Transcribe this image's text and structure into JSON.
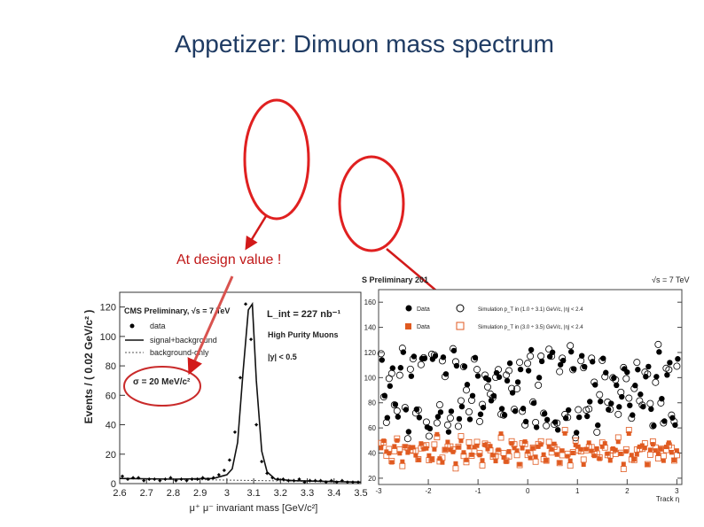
{
  "slide": {
    "title": "Appetizer: Dimuon mass spectrum",
    "annotation": "At design value !"
  },
  "colors": {
    "title": "#1f3b63",
    "annotation": "#c01818",
    "data_black": "#000000",
    "data_orange": "#e05a20"
  },
  "chart_data": [
    {
      "type": "line",
      "title": "",
      "xlabel": "μ⁺ μ⁻ invariant mass [GeV/c²]",
      "ylabel": "Events / ( 0.02 GeV/c² )",
      "xlim": [
        2.6,
        3.5
      ],
      "ylim": [
        0,
        130
      ],
      "x_ticks": [
        "2.6",
        "2.7",
        "2.8",
        "2.9",
        "3",
        "3.1",
        "3.2",
        "3.3",
        "3.4",
        "3.5"
      ],
      "y_ticks": [
        "0",
        "20",
        "40",
        "60",
        "80",
        "100",
        "120"
      ],
      "legend": [
        "data",
        "signal+background",
        "background-only"
      ],
      "legend_placement": "top-left",
      "annotations": {
        "experiment": "CMS Preliminary, √s = 7 TeV",
        "lumi": "L_int = 227 nb⁻¹",
        "selection": "High Purity Muons",
        "rapidity": "|y| < 0.5",
        "resolution": "σ = 20 MeV/c²"
      },
      "series": [
        {
          "name": "data",
          "x": [
            2.61,
            2.63,
            2.65,
            2.67,
            2.69,
            2.71,
            2.73,
            2.75,
            2.77,
            2.79,
            2.81,
            2.83,
            2.85,
            2.87,
            2.89,
            2.91,
            2.93,
            2.95,
            2.97,
            2.99,
            3.01,
            3.03,
            3.05,
            3.07,
            3.09,
            3.11,
            3.13,
            3.15,
            3.17,
            3.19,
            3.21,
            3.23,
            3.25,
            3.27,
            3.29,
            3.31,
            3.33,
            3.35,
            3.37,
            3.39,
            3.41,
            3.43,
            3.45,
            3.47,
            3.49
          ],
          "values": [
            5,
            3,
            4,
            4,
            2,
            3,
            3,
            2,
            3,
            4,
            2,
            3,
            2,
            3,
            3,
            4,
            3,
            4,
            6,
            9,
            16,
            35,
            72,
            122,
            98,
            40,
            15,
            7,
            4,
            3,
            3,
            2,
            2,
            3,
            1,
            2,
            2,
            2,
            1,
            2,
            1,
            2,
            1,
            1,
            1
          ]
        },
        {
          "name": "signal+background",
          "x": [
            2.6,
            2.8,
            2.95,
            3.0,
            3.02,
            3.04,
            3.06,
            3.08,
            3.095,
            3.11,
            3.13,
            3.15,
            3.18,
            3.25,
            3.5
          ],
          "values": [
            3.5,
            3.0,
            3.5,
            6,
            10,
            28,
            75,
            118,
            122,
            70,
            22,
            8,
            3,
            2,
            1
          ]
        },
        {
          "name": "background-only",
          "x": [
            2.6,
            3.5
          ],
          "values": [
            3.5,
            1
          ]
        }
      ]
    },
    {
      "type": "scatter",
      "title": "",
      "xlabel": "Track η",
      "ylabel": "",
      "xlim": [
        -3,
        3.1
      ],
      "ylim": [
        15,
        170
      ],
      "x_ticks": [
        "-3",
        "-2",
        "-1",
        "0",
        "1",
        "2",
        "3"
      ],
      "y_ticks": [
        "20",
        "40",
        "60",
        "80",
        "100",
        "120",
        "140",
        "160"
      ],
      "legend": [
        "Data",
        "Simulation p_T in (1.0 ÷ 3.1) GeV/c, |η| < 2.4",
        "Data",
        "Simulation p_T in (3.0 ÷ 3.5) GeV/c, |η| < 2.4"
      ],
      "legend_placement": "top",
      "annotations": {
        "experiment": "S Preliminary 201",
        "energy": "√s = 7 TeV"
      },
      "series": [
        {
          "name": "Data",
          "color": "#000000"
        },
        {
          "name": "Data",
          "color": "#e05a20"
        }
      ]
    }
  ]
}
